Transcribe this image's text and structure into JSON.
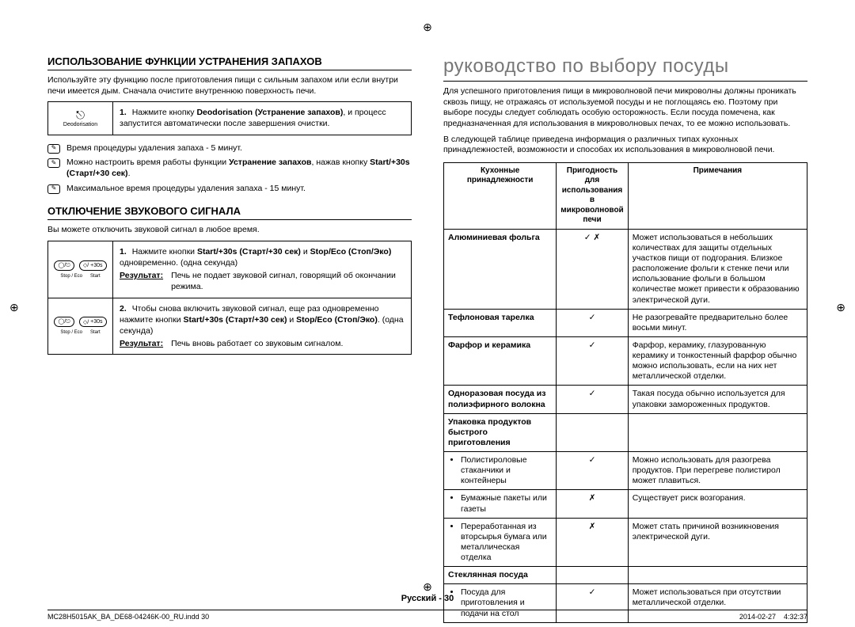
{
  "left": {
    "s1": {
      "title": "ИСПОЛЬЗОВАНИЕ ФУНКЦИИ УСТРАНЕНИЯ ЗАПАХОВ",
      "intro": "Используйте эту функцию после приготовления пищи с сильным запахом или если внутри печи имеется дым. Сначала очистите внутреннюю поверхность печи.",
      "icon_label": "Deodorisation",
      "step1_pre": "Нажмите кнопку ",
      "step1_bold": "Deodorisation (Устранение запахов)",
      "step1_post": ", и процесс запустится автоматически после завершения очистки.",
      "note1": "Время процедуры удаления запаха - 5 минут.",
      "note2_pre": "Можно настроить время работы функции ",
      "note2_bold1": "Устранение запахов",
      "note2_mid": ", нажав кнопку ",
      "note2_bold2": "Start/+30s (Старт/+30 сек)",
      "note2_post": ".",
      "note3": "Максимальное время процедуры удаления запаха - 15 минут."
    },
    "s2": {
      "title": "ОТКЛЮЧЕНИЕ ЗВУКОВОГО СИГНАЛА",
      "intro": "Вы можете отключить звуковой сигнал в любое время.",
      "icon_sub1": "Stop / Eco",
      "icon_sub2": "Start",
      "icon_plus": "+30s",
      "step1_a": "Нажмите кнопки ",
      "step1_b1": "Start/+30s (Старт/+30 сек)",
      "step1_b": " и ",
      "step1_b2": "Stop/Eco (Стоп/Эко)",
      "step1_c": " одновременно. (одна секунда)",
      "res_label": "Результат:",
      "step1_res": "Печь не подает звуковой сигнал, говорящий об окончании режима.",
      "step2_a": "Чтобы снова включить звуковой сигнал, еще раз одновременно нажмите кнопки ",
      "step2_b1": "Start/+30s (Старт/+30 сек)",
      "step2_b": " и ",
      "step2_b2": "Stop/Eco (Стоп/Эко)",
      "step2_c": ". (одна секунда)",
      "step2_res": "Печь вновь работает со звуковым сигналом."
    }
  },
  "right": {
    "title": "руководство по выбору посуды",
    "p1": "Для успешного приготовления пищи в микроволновой печи микроволны должны проникать сквозь пищу, не отражаясь от используемой посуды и не поглощаясь ею. Поэтому при выборе посуды следует соблюдать особую осторожность. Если посуда помечена, как предназначенная для использования в микроволновых печах, то ее можно использовать.",
    "p2": "В следующей таблице приведена информация о различных типах кухонных принадлежностей, возможности и способах их использования в микроволновой печи.",
    "th1": "Кухонные принадлежности",
    "th2": "Пригодность для использования в микроволновой печи",
    "th3": "Примечания",
    "rows": [
      {
        "name": "Алюминиевая фольга",
        "safe": "✓ ✗",
        "note": "Может использоваться в небольших количествах для защиты отдельных участков пищи от подгорания. Близкое расположение фольги к стенке печи или использование фольги в большом количестве может привести к образованию электрической дуги."
      },
      {
        "name": "Тефлоновая тарелка",
        "safe": "✓",
        "note": "Не разогревайте предварительно более восьми минут."
      },
      {
        "name": "Фарфор и керамика",
        "safe": "✓",
        "note": "Фарфор, керамику, глазурованную керамику и тонкостенный фарфор обычно можно использовать, если на них нет металлической отделки."
      },
      {
        "name": "Одноразовая посуда из полиэфирного волокна",
        "safe": "✓",
        "note": "Такая посуда обычно используется для упаковки замороженных продуктов."
      }
    ],
    "pkg_header": "Упаковка продуктов быстрого приготовления",
    "pkg": [
      {
        "name": "Полистироловые стаканчики и контейнеры",
        "safe": "✓",
        "note": "Можно использовать для разогрева продуктов. При перегреве полистирол может плавиться."
      },
      {
        "name": "Бумажные пакеты или газеты",
        "safe": "✗",
        "note": "Существует риск возгорания."
      },
      {
        "name": "Переработанная из вторсырья бумага или металлическая отделка",
        "safe": "✗",
        "note": "Может стать причиной возникновения электрической дуги."
      }
    ],
    "glass_header": "Стеклянная посуда",
    "glass": [
      {
        "name": "Посуда для приготовления и подачи на стол",
        "safe": "✓",
        "note": "Может использоваться при отсутствии металлической отделки."
      }
    ]
  },
  "footer": {
    "lang": "Русский - 30",
    "file": "MC28H5015AK_BA_DE68-04246K-00_RU.indd   30",
    "ts": "2014-02-27      4:32:37"
  }
}
